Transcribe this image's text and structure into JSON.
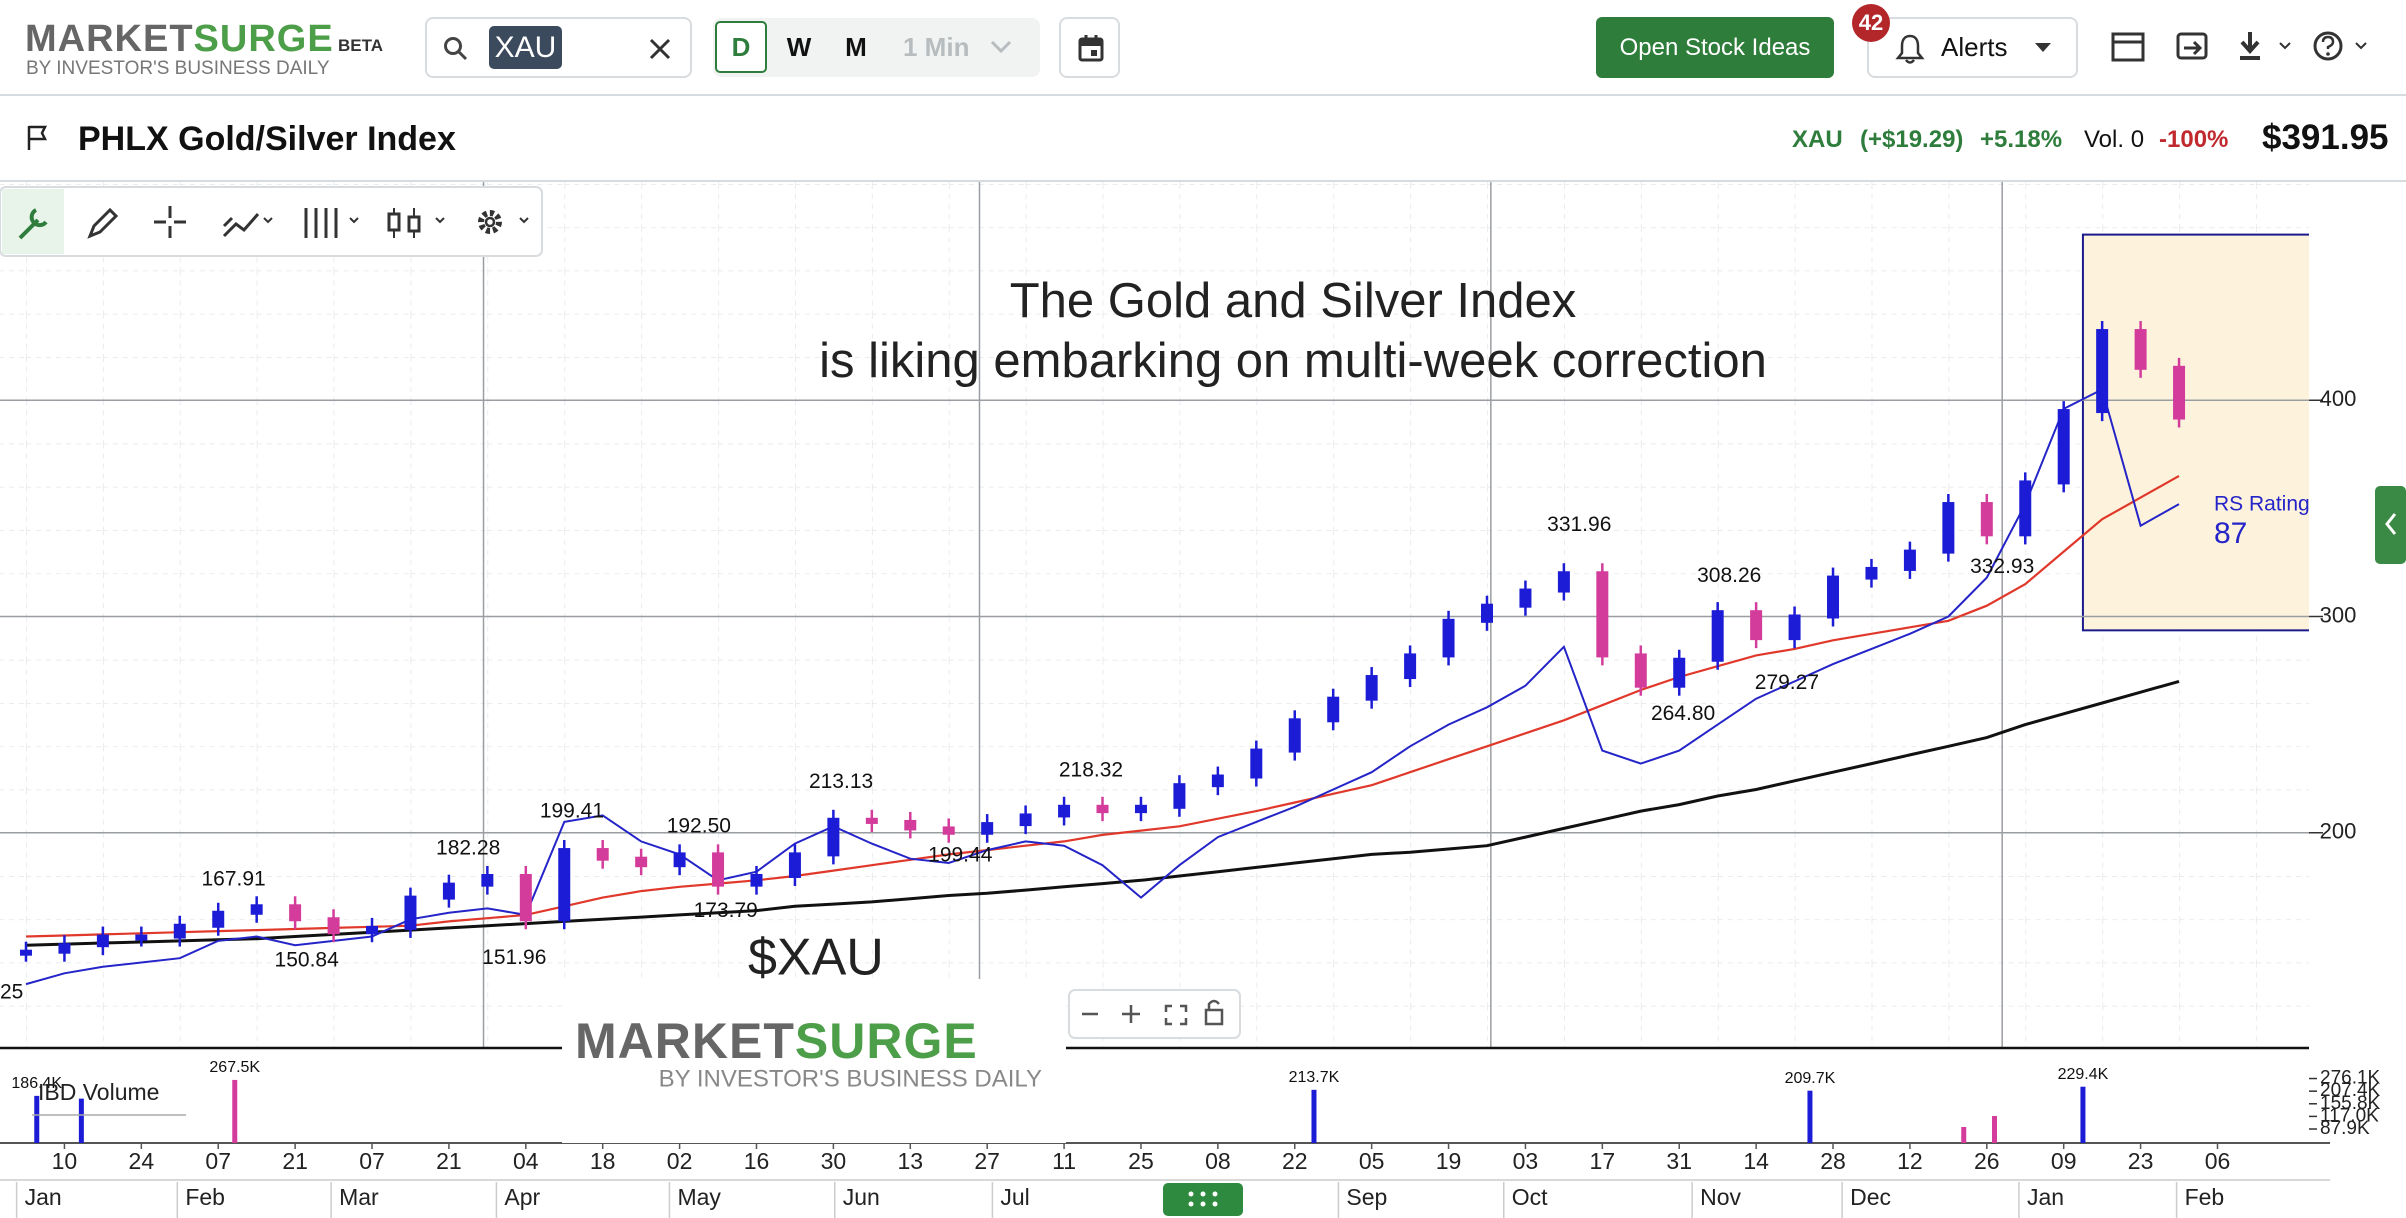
{
  "header": {
    "logo_market": "MARKET",
    "logo_surge": "SURGE",
    "beta": "BETA",
    "tagline": "BY INVESTOR'S BUSINESS DAILY",
    "search": "XAU",
    "periods": [
      "D",
      "W",
      "M"
    ],
    "interval": "1 Min",
    "cta": "Open Stock Ideas",
    "alerts_badge": "42",
    "alerts": "Alerts"
  },
  "quote": {
    "name": "PHLX Gold/Silver Index",
    "symbol": "XAU",
    "change": "(+$19.29)",
    "change_pct": "+5.18%",
    "volume": "Vol. 0",
    "volume_pct": "-100%",
    "price": "$391.95"
  },
  "chart_data": {
    "type": "stock",
    "annotation": [
      "The Gold and Silver Index",
      "is liking embarking on multi-week correction"
    ],
    "symbol_label": "$XAU",
    "rs_label": "RS Rating",
    "rs_value": 87,
    "edge_label": "25",
    "x": [
      0,
      1,
      2,
      3,
      4,
      5,
      6,
      7,
      8,
      9,
      10,
      11,
      12,
      13,
      14,
      15,
      16,
      17,
      18,
      19,
      20,
      21,
      22,
      23,
      24,
      25,
      26,
      27,
      28,
      29,
      30,
      31,
      32,
      33,
      34,
      35,
      36,
      37,
      38,
      39,
      40,
      41,
      42,
      43,
      44,
      45,
      46,
      47,
      48,
      49,
      50,
      51,
      52,
      53,
      54,
      55,
      56
    ],
    "series": [
      {
        "values": [
          145,
          148,
          152,
          152,
          157,
          163,
          166,
          160,
          154,
          156,
          170,
          176,
          180,
          160,
          192,
          188,
          185,
          190,
          176,
          180,
          190,
          206,
          205,
          202,
          200,
          204,
          208,
          212,
          210,
          212,
          222,
          226,
          238,
          252,
          262,
          272,
          282,
          298,
          305,
          312,
          320,
          282,
          268,
          280,
          302,
          290,
          300,
          318,
          322,
          330,
          352,
          338,
          362,
          395,
          432,
          415,
          392
        ],
        "color": "#1c1cd6",
        "down_color": "#d43c9c"
      },
      {
        "values": [
          152,
          152.5,
          153,
          153.5,
          154,
          154.5,
          155,
          155.5,
          156,
          156.5,
          157,
          159,
          160.5,
          162,
          166,
          170,
          173,
          175,
          176.5,
          178,
          180,
          182.5,
          185,
          187.5,
          190,
          192,
          194,
          196,
          199,
          201,
          203,
          206.5,
          210,
          214,
          218,
          222,
          228,
          234,
          240,
          246,
          252,
          259,
          266,
          272,
          277,
          282,
          285,
          289,
          292,
          295,
          298,
          305,
          315,
          330,
          345,
          355,
          365
        ],
        "color": "#e0392b"
      },
      {
        "values": [
          148,
          148.5,
          149,
          149.5,
          150,
          150.5,
          151,
          152,
          153,
          154,
          155,
          156,
          157,
          158,
          159,
          160,
          161,
          162,
          163,
          164,
          166,
          167,
          168,
          169.5,
          171,
          172,
          173.5,
          175,
          176.5,
          178,
          180,
          182,
          184,
          186,
          188,
          190,
          191,
          192.5,
          194,
          198,
          202,
          206,
          210,
          213,
          217,
          220,
          224,
          228,
          232,
          236,
          240,
          244,
          250,
          255,
          260,
          265,
          270
        ],
        "color": "#111111"
      },
      {
        "values": [
          130,
          135,
          138,
          140,
          142,
          150,
          152,
          148,
          150,
          152,
          160,
          163,
          165,
          162,
          205,
          208,
          196,
          190,
          178,
          182,
          195,
          203,
          195,
          188,
          186,
          192,
          196,
          194,
          185,
          170,
          185,
          198,
          205,
          212,
          220,
          228,
          240,
          250,
          258,
          268,
          286,
          238,
          232,
          238,
          250,
          262,
          270,
          278,
          285,
          292,
          300,
          318,
          352,
          396,
          405,
          342,
          352
        ],
        "color": "#2424c8"
      }
    ],
    "xlim": [
      -0.676,
      59.38
    ],
    "ylim": [
      100,
      500
    ],
    "yticks": [
      200,
      300,
      400
    ],
    "xgrid": [
      11.9,
      24.8,
      38.1,
      51.4
    ],
    "xticks": [
      {
        "value": 1,
        "label": "10"
      },
      {
        "value": 3,
        "label": "24"
      },
      {
        "value": 5,
        "label": "07"
      },
      {
        "value": 7,
        "label": "21"
      },
      {
        "value": 9,
        "label": "07"
      },
      {
        "value": 11,
        "label": "21"
      },
      {
        "value": 13,
        "label": "04"
      },
      {
        "value": 15,
        "label": "18"
      },
      {
        "value": 17,
        "label": "02"
      },
      {
        "value": 19,
        "label": "16"
      },
      {
        "value": 21,
        "label": "30"
      },
      {
        "value": 23,
        "label": "13"
      },
      {
        "value": 25,
        "label": "27"
      },
      {
        "value": 27,
        "label": "11"
      },
      {
        "value": 29,
        "label": "25"
      },
      {
        "value": 31,
        "label": "08"
      },
      {
        "value": 33,
        "label": "22"
      },
      {
        "value": 35,
        "label": "05"
      },
      {
        "value": 37,
        "label": "19"
      },
      {
        "value": 39,
        "label": "03"
      },
      {
        "value": 41,
        "label": "17"
      },
      {
        "value": 43,
        "label": "31"
      },
      {
        "value": 45,
        "label": "14"
      },
      {
        "value": 47,
        "label": "28"
      },
      {
        "value": 49,
        "label": "12"
      },
      {
        "value": 51,
        "label": "26"
      },
      {
        "value": 53,
        "label": "09"
      },
      {
        "value": 55,
        "label": "23"
      },
      {
        "value": 57,
        "label": "06"
      }
    ],
    "months": [
      {
        "value": 0.12,
        "label": "Jan"
      },
      {
        "value": 4.3,
        "label": "Feb"
      },
      {
        "value": 8.3,
        "label": "Mar"
      },
      {
        "value": 12.6,
        "label": "Apr"
      },
      {
        "value": 17.1,
        "label": "May"
      },
      {
        "value": 21.4,
        "label": "Jun"
      },
      {
        "value": 25.5,
        "label": "Jul"
      },
      {
        "value": 34.5,
        "label": "Sep"
      },
      {
        "value": 38.8,
        "label": "Oct"
      },
      {
        "value": 43.7,
        "label": "Nov"
      },
      {
        "value": 47.6,
        "label": "Dec"
      },
      {
        "value": 52.2,
        "label": "Jan"
      },
      {
        "value": 56.3,
        "label": "Feb"
      }
    ],
    "price_labels": [
      {
        "x": 5.4,
        "value": 167.91,
        "label": "167.91"
      },
      {
        "x": 7.3,
        "value": 150.84,
        "label": "150.84"
      },
      {
        "x": 11.5,
        "value": 182.28,
        "label": "182.28"
      },
      {
        "x": 12.7,
        "value": 151.96,
        "label": "151.96"
      },
      {
        "x": 14.2,
        "value": 199.41,
        "label": "199.41"
      },
      {
        "x": 17.5,
        "value": 192.5,
        "label": "192.50"
      },
      {
        "x": 18.2,
        "value": 173.79,
        "label": "173.79"
      },
      {
        "x": 21.2,
        "value": 213.13,
        "label": "213.13"
      },
      {
        "x": 24.3,
        "value": 199.44,
        "label": "199.44"
      },
      {
        "x": 27.7,
        "value": 218.32,
        "label": "218.32"
      },
      {
        "x": 40.4,
        "value": 331.96,
        "label": "331.96"
      },
      {
        "x": 43.1,
        "value": 264.8,
        "label": "264.80"
      },
      {
        "x": 44.3,
        "value": 308.26,
        "label": "308.26"
      },
      {
        "x": 45.8,
        "value": 279.27,
        "label": "279.27"
      },
      {
        "x": 51.4,
        "value": 332.93,
        "label": "332.93"
      }
    ],
    "highlight": {
      "xlim": [
        53.5,
        61.7
      ],
      "ylim": [
        293.6,
        476.6
      ],
      "color": "#fdf3dc",
      "border": "#1a1a8c"
    },
    "volume": {
      "title": "IBD Volume",
      "log": true,
      "ylim": [
        64000,
        552000
      ],
      "x": [
        0.28,
        1.44,
        5.43,
        33.5,
        46.4,
        50.4,
        51.2,
        53.5
      ],
      "values": [
        186400,
        175000,
        267500,
        213700,
        209700,
        92000,
        118000,
        229400
      ],
      "value_labels": [
        "186.4K",
        null,
        "267.5K",
        "213.7K",
        "209.7K",
        null,
        null,
        "229.4K"
      ],
      "colors": [
        "#1c1cd6",
        "#1c1cd6",
        "#d43c9c",
        "#1c1cd6",
        "#1c1cd6",
        "#d43c9c",
        "#d43c9c",
        "#1c1cd6"
      ],
      "yticks": [
        {
          "value": 276100,
          "label": "276.1K"
        },
        {
          "value": 207400,
          "label": "207.4K"
        },
        {
          "value": 155800,
          "label": "155.8K"
        },
        {
          "value": 117000,
          "label": "117.0K"
        },
        {
          "value": 87900,
          "label": "87.9K"
        }
      ]
    }
  }
}
